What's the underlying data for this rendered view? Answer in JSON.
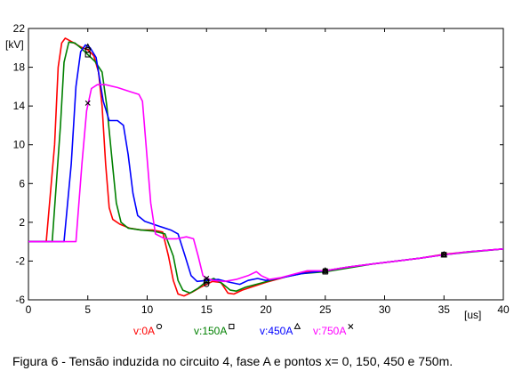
{
  "chart_data": {
    "type": "line",
    "xlabel": "[us]",
    "ylabel": "[kV]",
    "xlim": [
      0,
      40
    ],
    "ylim": [
      -6,
      22
    ],
    "x_ticks": [
      0,
      5,
      10,
      15,
      20,
      25,
      30,
      35,
      40
    ],
    "y_ticks": [
      -6,
      -2,
      2,
      6,
      10,
      14,
      18,
      22
    ],
    "x_tick_labels": [
      "0",
      "5",
      "10",
      "15",
      "20",
      "25",
      "30",
      "35",
      "40"
    ],
    "y_tick_labels": [
      "-6",
      "-2",
      "2",
      "6",
      "10",
      "14",
      "18",
      "22"
    ],
    "grid": false,
    "caption": "Figura 6 - Tensão induzida no circuito 4, fase A e pontos x= 0, 150, 450 e 750m.",
    "series": [
      {
        "name": "v:0A",
        "color": "#ff0000",
        "marker": "circle",
        "marker_points": [
          [
            5.0,
            19.8
          ],
          [
            15.0,
            -4.4
          ],
          [
            25.0,
            -3.0
          ],
          [
            35.0,
            -1.3
          ]
        ],
        "points": [
          [
            0,
            0
          ],
          [
            1.5,
            0
          ],
          [
            2.2,
            10
          ],
          [
            2.5,
            18
          ],
          [
            2.8,
            20.5
          ],
          [
            3.1,
            21.0
          ],
          [
            3.7,
            20.6
          ],
          [
            4.4,
            20.1
          ],
          [
            5.0,
            19.8
          ],
          [
            5.5,
            19.2
          ],
          [
            5.9,
            17.5
          ],
          [
            6.2,
            14
          ],
          [
            6.5,
            8
          ],
          [
            6.8,
            3.5
          ],
          [
            7.1,
            2.3
          ],
          [
            7.7,
            1.8
          ],
          [
            8.5,
            1.4
          ],
          [
            9.5,
            1.2
          ],
          [
            10.5,
            1.2
          ],
          [
            11.3,
            1.0
          ],
          [
            11.8,
            -1.5
          ],
          [
            12.2,
            -4
          ],
          [
            12.6,
            -5.4
          ],
          [
            13.1,
            -5.6
          ],
          [
            13.8,
            -5.2
          ],
          [
            14.5,
            -4.7
          ],
          [
            15.0,
            -4.4
          ],
          [
            15.5,
            -4.1
          ],
          [
            16.2,
            -4.2
          ],
          [
            16.8,
            -5.3
          ],
          [
            17.3,
            -5.4
          ],
          [
            18.0,
            -5.0
          ],
          [
            19.0,
            -4.6
          ],
          [
            20.0,
            -4.2
          ],
          [
            21.5,
            -3.7
          ],
          [
            23.0,
            -3.2
          ],
          [
            25.0,
            -3.0
          ],
          [
            27.0,
            -2.6
          ],
          [
            29.0,
            -2.3
          ],
          [
            31.0,
            -2.0
          ],
          [
            33.0,
            -1.7
          ],
          [
            35.0,
            -1.3
          ],
          [
            37.0,
            -1.05
          ],
          [
            40.0,
            -0.75
          ]
        ]
      },
      {
        "name": "v:150A",
        "color": "#008000",
        "marker": "square",
        "marker_points": [
          [
            5.0,
            19.3
          ],
          [
            15.0,
            -4.1
          ],
          [
            25.0,
            -3.1
          ],
          [
            35.0,
            -1.35
          ]
        ],
        "points": [
          [
            0,
            0
          ],
          [
            2.0,
            0
          ],
          [
            2.7,
            12
          ],
          [
            3.0,
            18.5
          ],
          [
            3.4,
            20.6
          ],
          [
            3.9,
            20.5
          ],
          [
            4.5,
            19.9
          ],
          [
            5.0,
            19.3
          ],
          [
            5.6,
            18.6
          ],
          [
            6.2,
            17.5
          ],
          [
            6.6,
            14
          ],
          [
            7.0,
            9
          ],
          [
            7.4,
            4
          ],
          [
            7.8,
            2.0
          ],
          [
            8.4,
            1.4
          ],
          [
            9.5,
            1.2
          ],
          [
            10.5,
            1.1
          ],
          [
            11.5,
            0.8
          ],
          [
            12.2,
            -1.5
          ],
          [
            12.6,
            -4
          ],
          [
            13.0,
            -5.0
          ],
          [
            13.6,
            -5.3
          ],
          [
            14.3,
            -4.8
          ],
          [
            15.0,
            -4.1
          ],
          [
            15.6,
            -3.8
          ],
          [
            16.3,
            -4.3
          ],
          [
            17.0,
            -5.0
          ],
          [
            17.5,
            -5.1
          ],
          [
            18.3,
            -4.7
          ],
          [
            19.5,
            -4.3
          ],
          [
            21.0,
            -3.8
          ],
          [
            23.0,
            -3.3
          ],
          [
            25.0,
            -3.1
          ],
          [
            27.0,
            -2.7
          ],
          [
            29.0,
            -2.3
          ],
          [
            31.0,
            -2.0
          ],
          [
            33.0,
            -1.7
          ],
          [
            35.0,
            -1.35
          ],
          [
            37.0,
            -1.1
          ],
          [
            40.0,
            -0.75
          ]
        ]
      },
      {
        "name": "v:450A",
        "color": "#0000ff",
        "marker": "triangle",
        "marker_points": [
          [
            5.0,
            20.1
          ],
          [
            15.0,
            -4.0
          ],
          [
            25.0,
            -3.0
          ],
          [
            35.0,
            -1.35
          ]
        ],
        "points": [
          [
            0,
            0
          ],
          [
            3.0,
            0
          ],
          [
            3.6,
            8
          ],
          [
            4.0,
            16
          ],
          [
            4.4,
            19.6
          ],
          [
            4.8,
            20.3
          ],
          [
            5.2,
            20.0
          ],
          [
            5.7,
            19.0
          ],
          [
            6.3,
            14.5
          ],
          [
            6.8,
            12.5
          ],
          [
            7.5,
            12.5
          ],
          [
            8.0,
            12.0
          ],
          [
            8.4,
            9
          ],
          [
            8.8,
            5
          ],
          [
            9.2,
            2.7
          ],
          [
            9.8,
            2.1
          ],
          [
            11.0,
            1.6
          ],
          [
            12.0,
            1.2
          ],
          [
            12.6,
            0.8
          ],
          [
            13.2,
            -1.5
          ],
          [
            13.7,
            -3.5
          ],
          [
            14.2,
            -4.1
          ],
          [
            15.0,
            -4.0
          ],
          [
            16.0,
            -3.9
          ],
          [
            17.0,
            -4.2
          ],
          [
            17.8,
            -4.4
          ],
          [
            18.5,
            -4.0
          ],
          [
            19.3,
            -3.8
          ],
          [
            20.0,
            -4.0
          ],
          [
            21.0,
            -3.8
          ],
          [
            23.0,
            -3.3
          ],
          [
            25.0,
            -3.0
          ],
          [
            27.0,
            -2.6
          ],
          [
            29.0,
            -2.3
          ],
          [
            31.0,
            -2.0
          ],
          [
            33.0,
            -1.7
          ],
          [
            35.0,
            -1.35
          ],
          [
            37.0,
            -1.05
          ],
          [
            40.0,
            -0.75
          ]
        ]
      },
      {
        "name": "v:750A",
        "color": "#ff00ff",
        "marker": "x",
        "marker_points": [
          [
            5.0,
            14.3
          ],
          [
            15.0,
            -3.8
          ],
          [
            25.0,
            -3.0
          ],
          [
            35.0,
            -1.35
          ]
        ],
        "points": [
          [
            0,
            0
          ],
          [
            4.0,
            0
          ],
          [
            4.5,
            8
          ],
          [
            4.9,
            13.5
          ],
          [
            5.3,
            15.8
          ],
          [
            5.8,
            16.2
          ],
          [
            6.5,
            16.2
          ],
          [
            7.5,
            15.9
          ],
          [
            8.5,
            15.5
          ],
          [
            9.3,
            15.2
          ],
          [
            9.6,
            14.5
          ],
          [
            9.9,
            10
          ],
          [
            10.3,
            4
          ],
          [
            10.7,
            0.8
          ],
          [
            11.5,
            0.3
          ],
          [
            12.5,
            0.3
          ],
          [
            13.3,
            0.5
          ],
          [
            13.9,
            0.3
          ],
          [
            14.3,
            -1.5
          ],
          [
            14.7,
            -3.5
          ],
          [
            15.0,
            -3.8
          ],
          [
            15.6,
            -4.0
          ],
          [
            16.5,
            -4.1
          ],
          [
            17.5,
            -3.9
          ],
          [
            18.5,
            -3.5
          ],
          [
            19.2,
            -3.1
          ],
          [
            19.6,
            -3.5
          ],
          [
            20.3,
            -3.9
          ],
          [
            21.3,
            -3.7
          ],
          [
            22.5,
            -3.3
          ],
          [
            23.5,
            -3.0
          ],
          [
            25.0,
            -3.0
          ],
          [
            27.0,
            -2.6
          ],
          [
            29.0,
            -2.3
          ],
          [
            31.0,
            -2.0
          ],
          [
            33.0,
            -1.7
          ],
          [
            35.0,
            -1.35
          ],
          [
            37.0,
            -1.05
          ],
          [
            40.0,
            -0.75
          ]
        ]
      }
    ],
    "legend": {
      "placement": "bottom-center",
      "entries": [
        {
          "label": "v:0A",
          "color": "#ff0000",
          "marker": "circle"
        },
        {
          "label": "v:150A",
          "color": "#008000",
          "marker": "square"
        },
        {
          "label": "v:450A",
          "color": "#0000ff",
          "marker": "triangle"
        },
        {
          "label": "v:750A",
          "color": "#ff00ff",
          "marker": "x"
        }
      ]
    }
  }
}
